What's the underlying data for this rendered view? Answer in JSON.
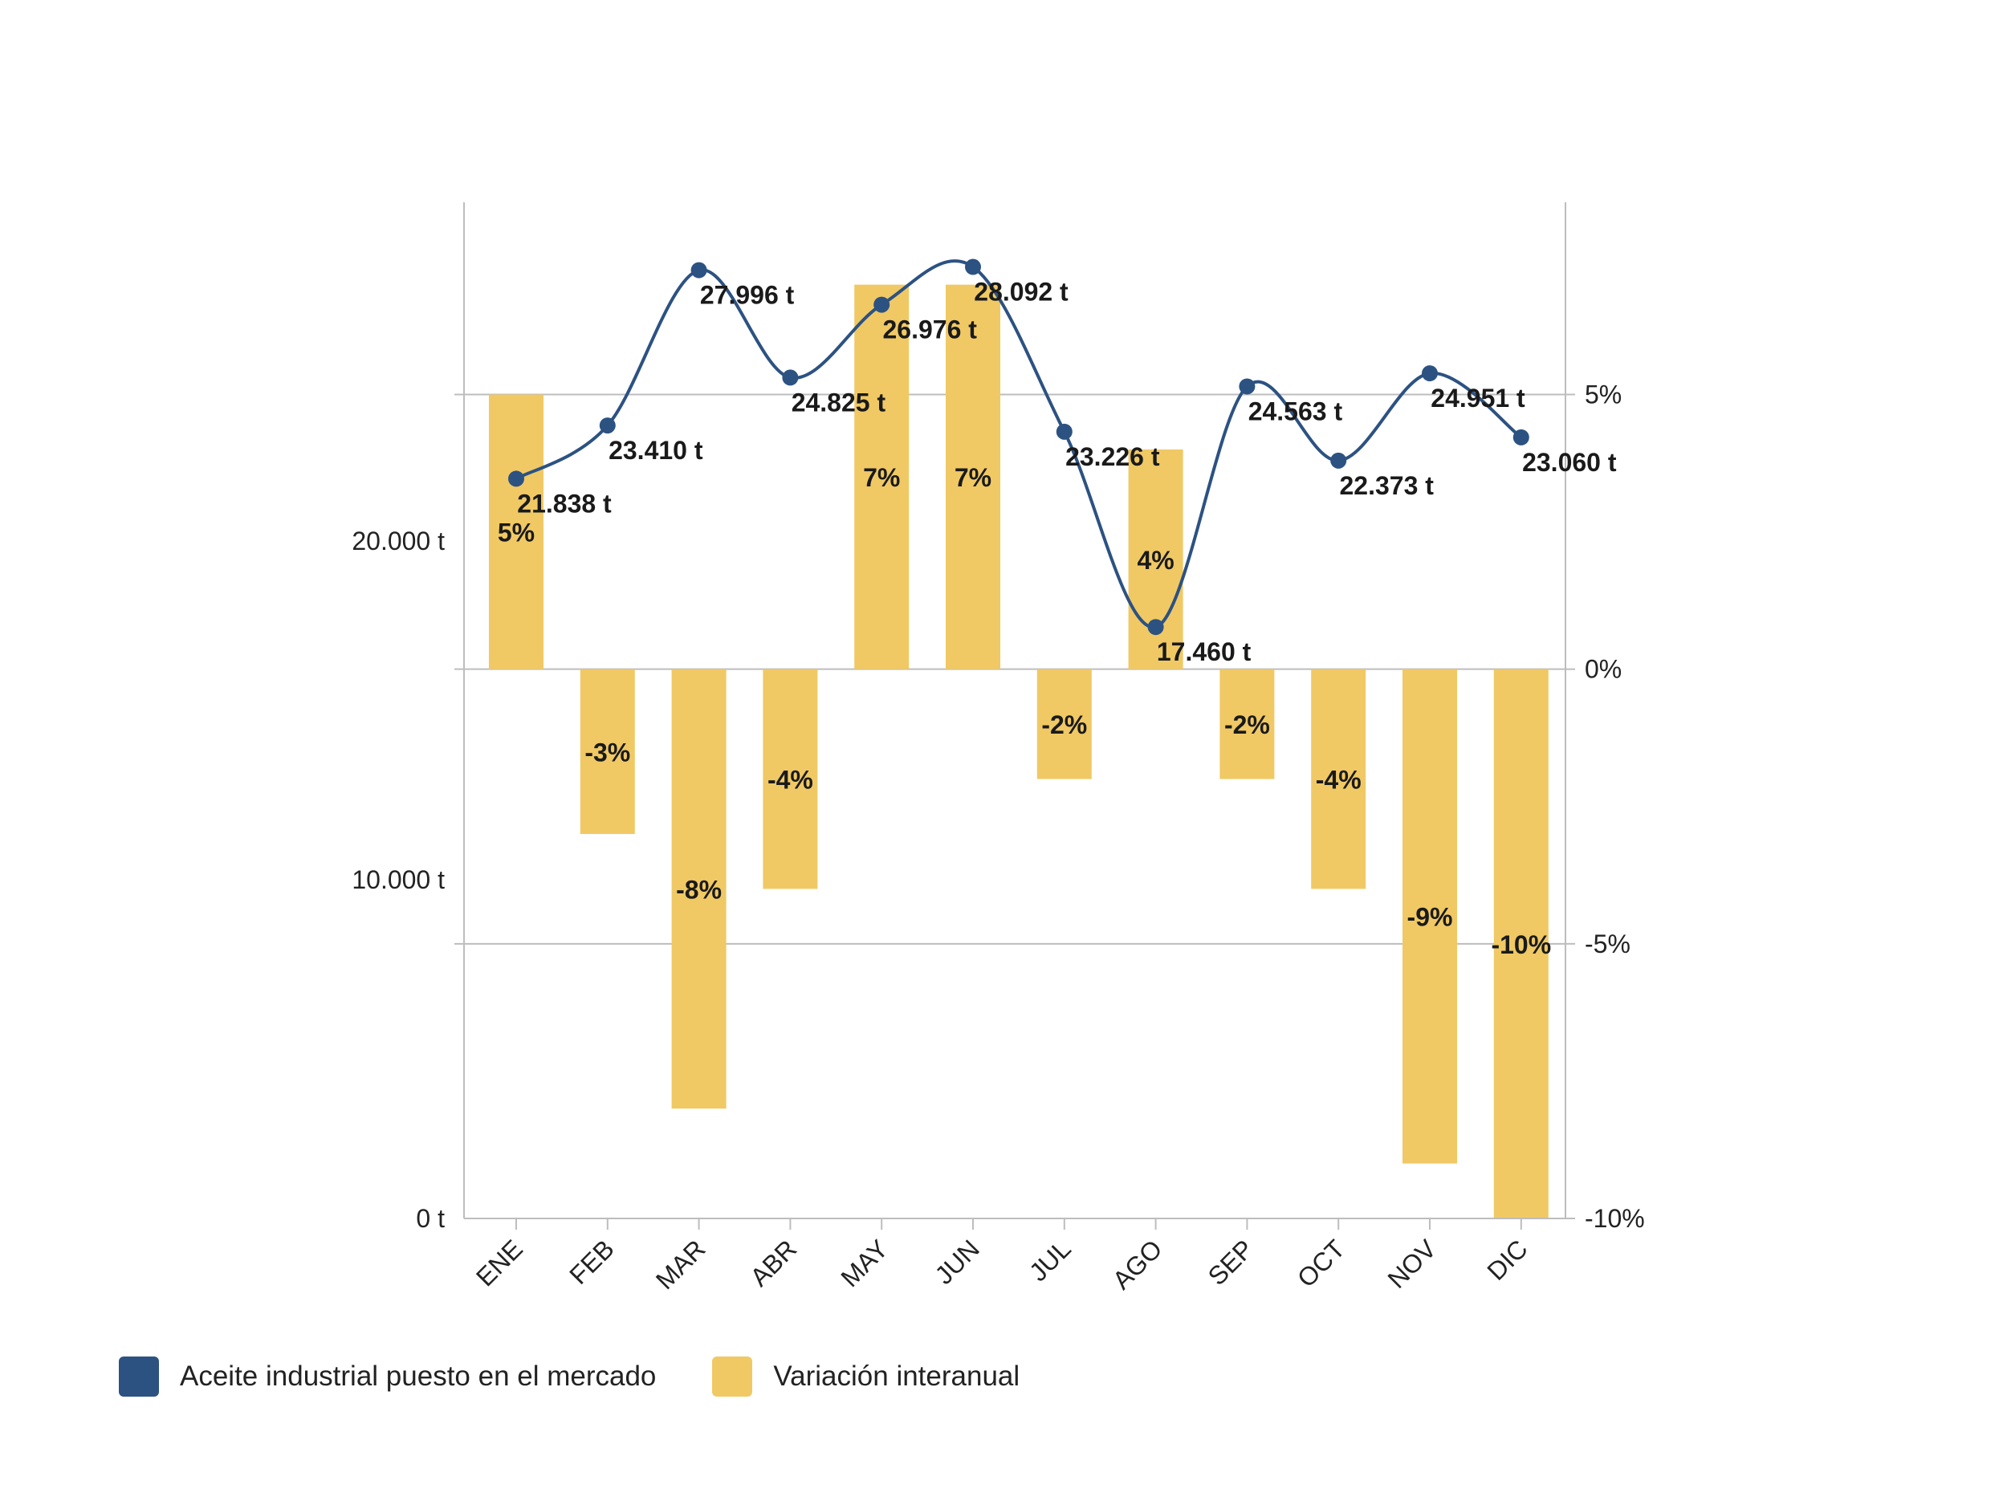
{
  "chart_data": {
    "type": "bar+line",
    "categories": [
      "ENE",
      "FEB",
      "MAR",
      "ABR",
      "MAY",
      "JUN",
      "JUL",
      "AGO",
      "SEP",
      "OCT",
      "NOV",
      "DIC"
    ],
    "series": [
      {
        "name": "Aceite industrial puesto en el mercado",
        "type": "line",
        "axis": "left",
        "values": [
          21838,
          23410,
          27996,
          24825,
          26976,
          28092,
          23226,
          17460,
          24563,
          22373,
          24951,
          23060
        ],
        "labels": [
          "21.838 t",
          "23.410 t",
          "27.996 t",
          "24.825 t",
          "26.976 t",
          "28.092 t",
          "23.226 t",
          "17.460 t",
          "24.563 t",
          "22.373 t",
          "24.951 t",
          "23.060 t"
        ],
        "color": "#2c5282"
      },
      {
        "name": "Variación interanual",
        "type": "bar",
        "axis": "right",
        "values": [
          5,
          -3,
          -8,
          -4,
          7,
          7,
          -2,
          4,
          -2,
          -4,
          -9,
          -10
        ],
        "labels": [
          "5%",
          "-3%",
          "-8%",
          "-4%",
          "7%",
          "7%",
          "-2%",
          "4%",
          "-2%",
          "-4%",
          "-9%",
          "-10%"
        ],
        "color": "#f0c965"
      }
    ],
    "y_left": {
      "ticks": [
        0,
        10000,
        20000
      ],
      "tick_labels": [
        "0 t",
        "10.000 t",
        "20.000 t"
      ],
      "range": [
        0,
        30000
      ]
    },
    "y_right": {
      "ticks": [
        -10,
        -5,
        0,
        5
      ],
      "tick_labels": [
        "-10%",
        "-5%",
        "0%",
        "5%"
      ],
      "range": [
        -10,
        8.5
      ]
    },
    "legend_position": "bottom-left",
    "grid": true
  },
  "legend": [
    {
      "label": "Aceite industrial puesto en el mercado",
      "color": "#2c5282"
    },
    {
      "label": "Variación interanual",
      "color": "#f0c965"
    }
  ]
}
